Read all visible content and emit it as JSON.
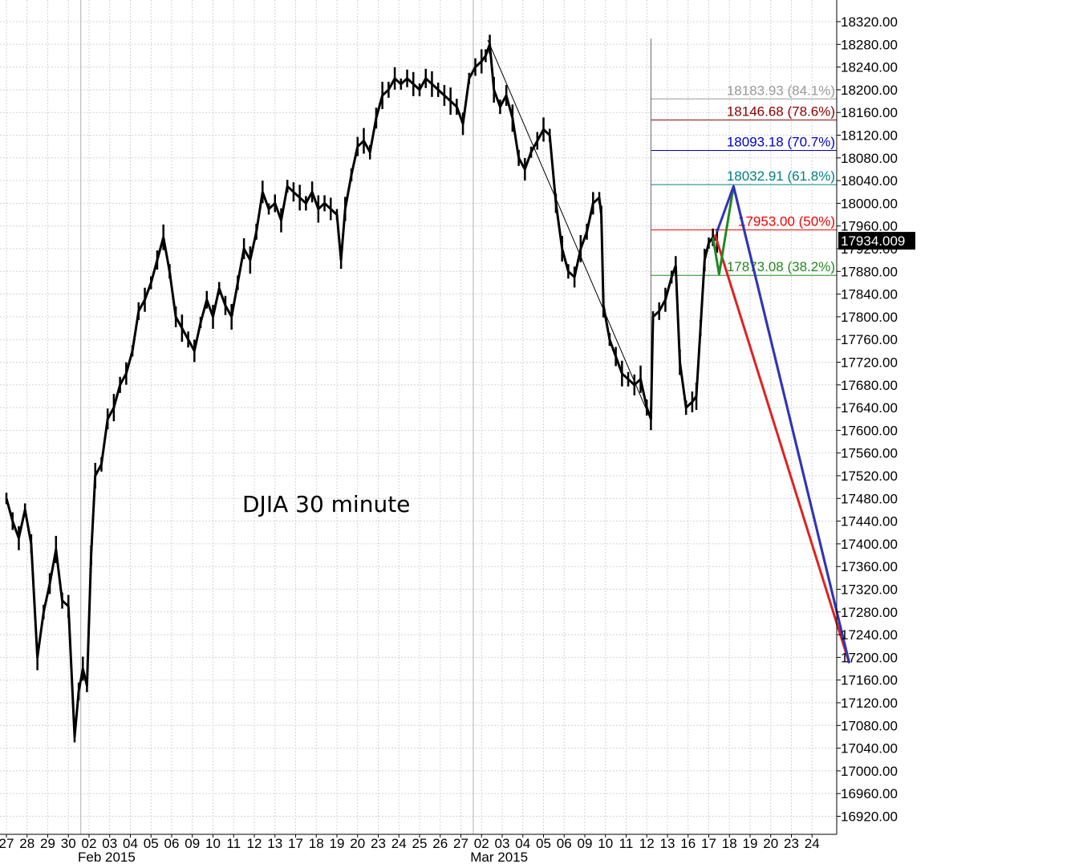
{
  "chart_data": {
    "type": "line",
    "title": "DJIA 30 minute",
    "ylim": [
      16890,
      18350
    ],
    "grid": true,
    "y_ticks": [
      16920,
      16960,
      17000,
      17040,
      17080,
      17120,
      17160,
      17200,
      17240,
      17280,
      17320,
      17360,
      17400,
      17440,
      17480,
      17520,
      17560,
      17600,
      17640,
      17680,
      17720,
      17760,
      17800,
      17840,
      17880,
      17920,
      17960,
      18000,
      18040,
      18080,
      18120,
      18160,
      18200,
      18240,
      18280,
      18320
    ],
    "y_tick_labels": [
      "16920.00",
      "16960.00",
      "17000.00",
      "17040.00",
      "17080.00",
      "17120.00",
      "17160.00",
      "17200.00",
      "17240.00",
      "17280.00",
      "17320.00",
      "17360.00",
      "17400.00",
      "17440.00",
      "17480.00",
      "17520.00",
      "17560.00",
      "17600.00",
      "17640.00",
      "17680.00",
      "17720.00",
      "17760.00",
      "17800.00",
      "17840.00",
      "17880.00",
      "17920.00",
      "17960.00",
      "18000.00",
      "18040.00",
      "18080.00",
      "18120.00",
      "18160.00",
      "18200.00",
      "18240.00",
      "18280.00",
      "18320.00"
    ],
    "x_labels": [
      "27",
      "28",
      "29",
      "30",
      "02",
      "03",
      "04",
      "05",
      "06",
      "09",
      "10",
      "11",
      "12",
      "13",
      "17",
      "18",
      "19",
      "20",
      "23",
      "24",
      "25",
      "26",
      "27",
      "02",
      "03",
      "04",
      "05",
      "06",
      "09",
      "10",
      "11",
      "12",
      "13",
      "16",
      "17",
      "18",
      "19",
      "20",
      "23",
      "24"
    ],
    "x_month_labels": [
      {
        "label": "Feb 2015",
        "at_index": 4
      },
      {
        "label": "Mar 2015",
        "at_index": 23
      }
    ],
    "month_separators": [
      3.6,
      22.6
    ],
    "series": [
      {
        "type": "bar-path",
        "color": "#000000",
        "points": [
          [
            0.0,
            17480
          ],
          [
            0.3,
            17440
          ],
          [
            0.6,
            17410
          ],
          [
            0.9,
            17460
          ],
          [
            1.2,
            17400
          ],
          [
            1.5,
            17200
          ],
          [
            1.8,
            17280
          ],
          [
            2.1,
            17330
          ],
          [
            2.4,
            17390
          ],
          [
            2.7,
            17300
          ],
          [
            3.0,
            17290
          ],
          [
            3.3,
            17060
          ],
          [
            3.5,
            17140
          ],
          [
            3.7,
            17180
          ],
          [
            3.9,
            17150
          ],
          [
            4.1,
            17380
          ],
          [
            4.3,
            17520
          ],
          [
            4.6,
            17540
          ],
          [
            4.9,
            17620
          ],
          [
            5.2,
            17640
          ],
          [
            5.5,
            17680
          ],
          [
            5.8,
            17700
          ],
          [
            6.1,
            17740
          ],
          [
            6.4,
            17810
          ],
          [
            6.7,
            17830
          ],
          [
            7.0,
            17860
          ],
          [
            7.3,
            17900
          ],
          [
            7.6,
            17940
          ],
          [
            7.9,
            17880
          ],
          [
            8.2,
            17800
          ],
          [
            8.5,
            17780
          ],
          [
            8.8,
            17760
          ],
          [
            9.1,
            17740
          ],
          [
            9.4,
            17790
          ],
          [
            9.7,
            17830
          ],
          [
            10.0,
            17800
          ],
          [
            10.3,
            17850
          ],
          [
            10.6,
            17820
          ],
          [
            10.9,
            17800
          ],
          [
            11.2,
            17860
          ],
          [
            11.5,
            17920
          ],
          [
            11.8,
            17900
          ],
          [
            12.1,
            17950
          ],
          [
            12.4,
            18020
          ],
          [
            12.7,
            17990
          ],
          [
            13.0,
            18000
          ],
          [
            13.3,
            17970
          ],
          [
            13.6,
            18030
          ],
          [
            13.9,
            18020
          ],
          [
            14.2,
            18010
          ],
          [
            14.5,
            18000
          ],
          [
            14.8,
            18020
          ],
          [
            15.1,
            17990
          ],
          [
            15.4,
            18000
          ],
          [
            15.7,
            17990
          ],
          [
            16.0,
            17980
          ],
          [
            16.2,
            17900
          ],
          [
            16.4,
            17990
          ],
          [
            16.7,
            18050
          ],
          [
            17.0,
            18100
          ],
          [
            17.3,
            18110
          ],
          [
            17.6,
            18090
          ],
          [
            17.9,
            18150
          ],
          [
            18.2,
            18190
          ],
          [
            18.5,
            18200
          ],
          [
            18.8,
            18220
          ],
          [
            19.1,
            18210
          ],
          [
            19.4,
            18220
          ],
          [
            19.7,
            18210
          ],
          [
            20.0,
            18200
          ],
          [
            20.3,
            18220
          ],
          [
            20.6,
            18210
          ],
          [
            20.9,
            18200
          ],
          [
            21.2,
            18190
          ],
          [
            21.5,
            18180
          ],
          [
            21.8,
            18170
          ],
          [
            22.1,
            18140
          ],
          [
            22.4,
            18220
          ],
          [
            22.7,
            18240
          ],
          [
            23.0,
            18250
          ],
          [
            23.2,
            18260
          ],
          [
            23.4,
            18280
          ],
          [
            23.6,
            18200
          ],
          [
            23.9,
            18170
          ],
          [
            24.2,
            18190
          ],
          [
            24.5,
            18150
          ],
          [
            24.8,
            18080
          ],
          [
            25.1,
            18060
          ],
          [
            25.4,
            18090
          ],
          [
            25.7,
            18110
          ],
          [
            26.0,
            18130
          ],
          [
            26.3,
            18120
          ],
          [
            26.6,
            18000
          ],
          [
            26.9,
            17920
          ],
          [
            27.2,
            17880
          ],
          [
            27.5,
            17870
          ],
          [
            27.8,
            17920
          ],
          [
            28.1,
            17950
          ],
          [
            28.4,
            18000
          ],
          [
            28.7,
            18010
          ],
          [
            28.8,
            17980
          ],
          [
            28.9,
            17820
          ],
          [
            29.2,
            17760
          ],
          [
            29.5,
            17730
          ],
          [
            29.8,
            17700
          ],
          [
            30.1,
            17690
          ],
          [
            30.4,
            17680
          ],
          [
            30.7,
            17690
          ],
          [
            31.0,
            17640
          ],
          [
            31.2,
            17620
          ],
          [
            31.3,
            17800
          ],
          [
            31.6,
            17810
          ],
          [
            31.9,
            17830
          ],
          [
            32.2,
            17870
          ],
          [
            32.4,
            17890
          ],
          [
            32.6,
            17720
          ],
          [
            32.9,
            17640
          ],
          [
            33.2,
            17650
          ],
          [
            33.4,
            17660
          ],
          [
            33.6,
            17780
          ],
          [
            33.8,
            17900
          ],
          [
            34.0,
            17930
          ],
          [
            34.2,
            17940
          ],
          [
            34.4,
            17934
          ]
        ]
      }
    ],
    "drawn_lines": [
      {
        "name": "decline",
        "color": "#000000",
        "from": [
          23.3,
          18288
        ],
        "to": [
          31.2,
          17618
        ]
      },
      {
        "name": "range-marker",
        "color": "#666666",
        "from": [
          31.2,
          18290
        ],
        "to": [
          31.2,
          17618
        ]
      }
    ],
    "projection_paths": [
      {
        "name": "red-path",
        "color": "#dd2222",
        "points": [
          [
            34.3,
            17945
          ],
          [
            40.8,
            17190
          ]
        ]
      },
      {
        "name": "green-path",
        "color": "#228822",
        "points": [
          [
            34.2,
            17940
          ],
          [
            34.5,
            17875
          ],
          [
            35.2,
            18030
          ],
          [
            40.8,
            17190
          ]
        ]
      },
      {
        "name": "blue-path",
        "color": "#3333bb",
        "points": [
          [
            34.4,
            17950
          ],
          [
            35.2,
            18030
          ],
          [
            40.8,
            17190
          ]
        ]
      }
    ],
    "fib_levels": [
      {
        "value": 18183.93,
        "label": "18183.93 (84.1%)",
        "color": "#9a9a9a"
      },
      {
        "value": 18146.68,
        "label": "18146.68 (78.6%)",
        "color": "#8b0000"
      },
      {
        "value": 18093.18,
        "label": "18093.18 (70.7%)",
        "color": "#0000cc"
      },
      {
        "value": 18032.91,
        "label": "18032.91 (61.8%)",
        "color": "#008080"
      },
      {
        "value": 17953.0,
        "label": "17953.00 (50%)",
        "color": "#ee0000"
      },
      {
        "value": 17873.08,
        "label": "17873.08 (38.2%)",
        "color": "#228822"
      }
    ],
    "fib_start_index": 31.2,
    "last_value": {
      "value": 17934,
      "label": "17934.009"
    }
  }
}
